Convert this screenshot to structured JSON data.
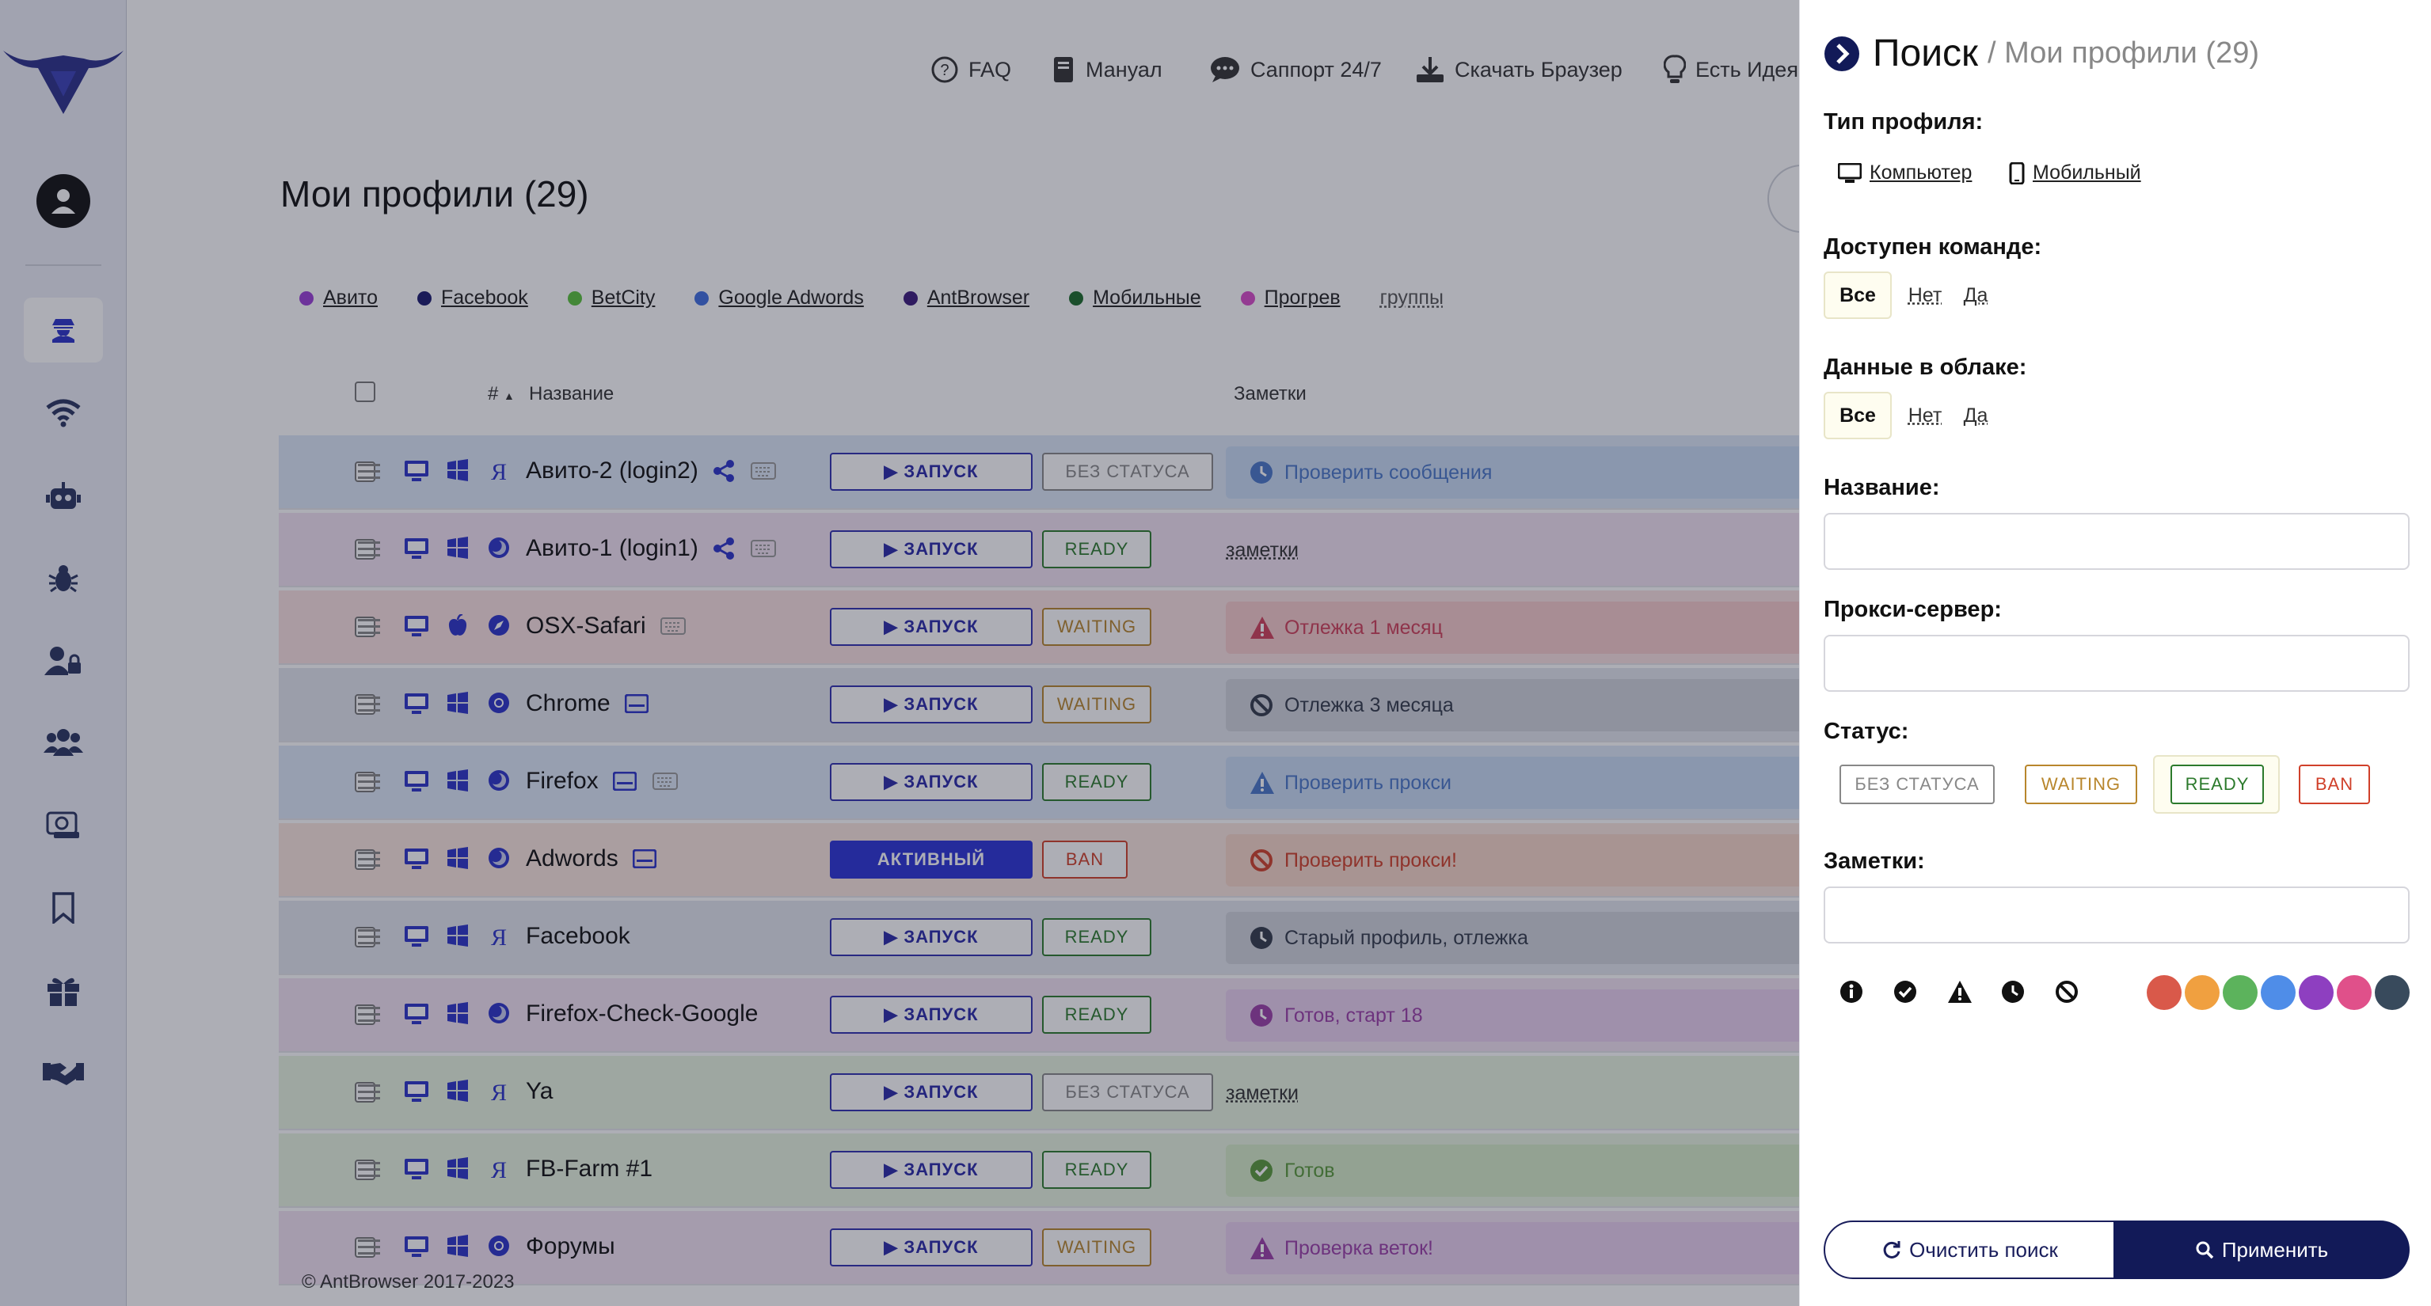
{
  "nav": {
    "faq": "FAQ",
    "manual": "Мануал",
    "support": "Саппорт 24/7",
    "download": "Скачать Браузер",
    "idea": "Есть Идея"
  },
  "page_title": "Мои профили (29)",
  "groups": [
    {
      "name": "Авито",
      "color": "#9b3fd6"
    },
    {
      "name": "Facebook",
      "color": "#1a1a6e"
    },
    {
      "name": "BetCity",
      "color": "#59c23b"
    },
    {
      "name": "Google Adwords",
      "color": "#3f6ee0"
    },
    {
      "name": "AntBrowser",
      "color": "#3b1a7a"
    },
    {
      "name": "Мобильные",
      "color": "#1c6b2a"
    },
    {
      "name": "Прогрев",
      "color": "#d84cc8"
    }
  ],
  "groups_link": "группы",
  "table": {
    "col_num": "#",
    "col_name": "Название",
    "col_notes": "Заметки"
  },
  "rows": [
    {
      "name": "Авито-2 (login2)",
      "bg": "#dde8f8",
      "browser": "yandex",
      "extras": [
        "share",
        "keyboard"
      ],
      "launch": "▶ ЗАПУСК",
      "status": "БЕЗ СТАТУСА",
      "status_color": "#888888",
      "note": "Проверить сообщения",
      "note_icon": "clock",
      "note_bg": "#c9dcf5",
      "note_color": "#4a78c8"
    },
    {
      "name": "Авито-1 (login1)",
      "bg": "#f2e3f3",
      "browser": "globe",
      "extras": [
        "share",
        "keyboard"
      ],
      "launch": "▶ ЗАПУСК",
      "status": "READY",
      "status_color": "#2c7a2c",
      "note": "заметки",
      "note_icon": "",
      "note_bg": "",
      "note_color": "#333333"
    },
    {
      "name": "OSX-Safari",
      "bg": "#fbe2e2",
      "browser": "safari",
      "os": "apple",
      "extras": [
        "keyboard"
      ],
      "launch": "▶ ЗАПУСК",
      "status": "WAITING",
      "status_color": "#b8862c",
      "note": "Отлежка 1 месяц",
      "note_icon": "warn",
      "note_bg": "#f7cccc",
      "note_color": "#d0405a"
    },
    {
      "name": "Chrome",
      "bg": "#e3e6ee",
      "browser": "chrome",
      "extras": [
        "profile"
      ],
      "launch": "▶ ЗАПУСК",
      "status": "WAITING",
      "status_color": "#b8862c",
      "note": "Отлежка 3 месяца",
      "note_icon": "ban",
      "note_bg": "#d0d4dc",
      "note_color": "#333a4a"
    },
    {
      "name": "Firefox",
      "bg": "#dde8f8",
      "browser": "globe",
      "extras": [
        "profile",
        "keyboard"
      ],
      "launch": "▶ ЗАПУСК",
      "status": "READY",
      "status_color": "#2c7a2c",
      "note": "Проверить прокси",
      "note_icon": "warn",
      "note_bg": "#c9dcf5",
      "note_color": "#4a78c8"
    },
    {
      "name": "Adwords",
      "bg": "#fbe6df",
      "browser": "globe",
      "extras": [
        "profile"
      ],
      "launch": "АКТИВНЫЙ",
      "launch_active": true,
      "status": "BAN",
      "status_color": "#d0402a",
      "note": "Проверить прокси!",
      "note_icon": "ban",
      "note_bg": "#f8d6c8",
      "note_color": "#d0402a"
    },
    {
      "name": "Facebook",
      "bg": "#e3e6ee",
      "browser": "yandex",
      "extras": [],
      "launch": "▶ ЗАПУСК",
      "status": "READY",
      "status_color": "#2c7a2c",
      "note": "Старый профиль, отлежка",
      "note_icon": "clock",
      "note_bg": "#d0d4dc",
      "note_color": "#333a4a"
    },
    {
      "name": "Firefox-Check-Google",
      "bg": "#f2e3f3",
      "browser": "globe",
      "extras": [],
      "launch": "▶ ЗАПУСК",
      "status": "READY",
      "status_color": "#2c7a2c",
      "note": "Готов, старт 18",
      "note_icon": "clock",
      "note_bg": "#ead0f0",
      "note_color": "#9b3fa8"
    },
    {
      "name": "Ya",
      "bg": "#e8f4e0",
      "browser": "yandex",
      "extras": [],
      "launch": "▶ ЗАПУСК",
      "status": "БЕЗ СТАТУСА",
      "status_color": "#888888",
      "note": "заметки",
      "note_icon": "",
      "note_bg": "",
      "note_color": "#333333"
    },
    {
      "name": "FB-Farm #1",
      "bg": "#e8f4e0",
      "browser": "yandex",
      "extras": [],
      "launch": "▶ ЗАПУСК",
      "status": "READY",
      "status_color": "#2c7a2c",
      "note": "Готов",
      "note_icon": "check",
      "note_bg": "#d6ecc8",
      "note_color": "#5a9a3a"
    },
    {
      "name": "Форумы",
      "bg": "#f2e3f3",
      "browser": "chrome",
      "extras": [],
      "launch": "▶ ЗАПУСК",
      "status": "WAITING",
      "status_color": "#b8862c",
      "note": "Проверка веток!",
      "note_icon": "warn",
      "note_bg": "#ead0f0",
      "note_color": "#9b3fa8"
    }
  ],
  "footer": "© AntBrowser 2017-2023",
  "filter": {
    "title": "Поиск",
    "subtitle": "/ Мои профили (29)",
    "profile_type_label": "Тип профиля:",
    "type_computer": "Компьютер",
    "type_mobile": "Мобильный",
    "team_label": "Доступен команде:",
    "cloud_label": "Данные в облаке:",
    "opt_all": "Все",
    "opt_no": "Нет",
    "opt_yes": "Да",
    "name_label": "Название:",
    "proxy_label": "Прокси-сервер:",
    "status_label": "Статус:",
    "statuses": [
      {
        "label": "БЕЗ СТАТУСА",
        "color": "#888888"
      },
      {
        "label": "WAITING",
        "color": "#b8862c"
      },
      {
        "label": "READY",
        "color": "#2c7a2c"
      },
      {
        "label": "BAN",
        "color": "#d0402a"
      }
    ],
    "notes_label": "Заметки:",
    "note_icons": [
      "info-icon",
      "check-circle-icon",
      "warning-icon",
      "clock-icon",
      "ban-icon"
    ],
    "colors": [
      "#d9594a",
      "#f0a040",
      "#5cb35c",
      "#4f8de8",
      "#8e3fc0",
      "#e0508a",
      "#384a5c"
    ],
    "clear": "Очистить поиск",
    "apply": "Применить"
  }
}
